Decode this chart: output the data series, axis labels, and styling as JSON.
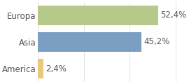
{
  "categories": [
    "America",
    "Asia",
    "Europa"
  ],
  "values": [
    2.4,
    45.2,
    52.4
  ],
  "bar_colors": [
    "#e8c97a",
    "#7a9fc2",
    "#b5c98a"
  ],
  "label_texts": [
    "2,4%",
    "45,2%",
    "52,4%"
  ],
  "background_color": "#ffffff",
  "xlim": [
    0,
    68
  ],
  "bar_height": 0.72,
  "label_fontsize": 8.5,
  "tick_fontsize": 8.5,
  "text_color": "#555555"
}
